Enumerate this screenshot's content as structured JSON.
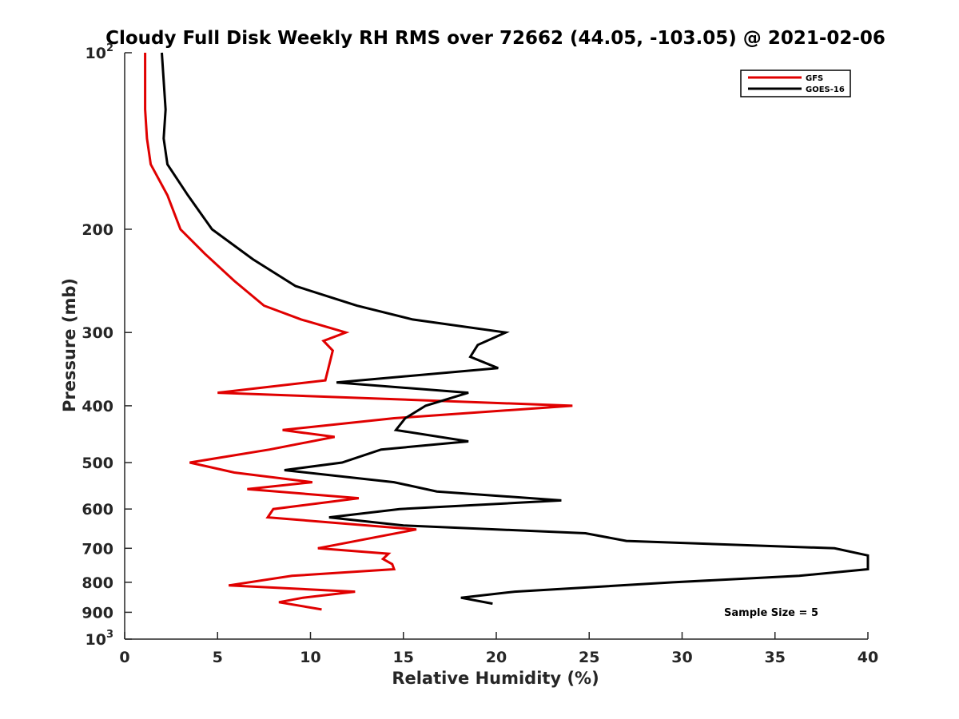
{
  "chart_data": {
    "type": "line",
    "title": "Cloudy Full Disk Weekly RH RMS over 72662 (44.05, -103.05) @ 2021-02-06",
    "xlabel": "Relative Humidity (%)",
    "ylabel": "Pressure (mb)",
    "xlim": [
      0,
      40
    ],
    "ylim": [
      100,
      1000
    ],
    "y_scale": "log",
    "y_reversed": true,
    "grid": false,
    "legend_position": "top-right",
    "x_ticks": [
      "0",
      "5",
      "10",
      "15",
      "20",
      "25",
      "30",
      "35",
      "40"
    ],
    "y_ticks": [
      {
        "value": 100,
        "base": "10",
        "exp": "2"
      },
      {
        "value": 200,
        "label": "200"
      },
      {
        "value": 300,
        "label": "300"
      },
      {
        "value": 400,
        "label": "400"
      },
      {
        "value": 500,
        "label": "500"
      },
      {
        "value": 600,
        "label": "600"
      },
      {
        "value": 700,
        "label": "700"
      },
      {
        "value": 800,
        "label": "800"
      },
      {
        "value": 900,
        "label": "900"
      },
      {
        "value": 1000,
        "base": "10",
        "exp": "3"
      }
    ],
    "series": [
      {
        "name": "GFS",
        "color": "#e00000",
        "points": [
          [
            1.1,
            100
          ],
          [
            1.1,
            125
          ],
          [
            1.2,
            140
          ],
          [
            1.4,
            155
          ],
          [
            2.3,
            175
          ],
          [
            3.0,
            200
          ],
          [
            4.3,
            220
          ],
          [
            5.9,
            245
          ],
          [
            7.5,
            270
          ],
          [
            9.5,
            285
          ],
          [
            11.9,
            300
          ],
          [
            10.7,
            310
          ],
          [
            11.2,
            322
          ],
          [
            10.8,
            362
          ],
          [
            5.0,
            380
          ],
          [
            24.1,
            400
          ],
          [
            14.5,
            420
          ],
          [
            8.5,
            440
          ],
          [
            11.3,
            452
          ],
          [
            7.8,
            475
          ],
          [
            3.5,
            500
          ],
          [
            5.9,
            520
          ],
          [
            10.1,
            540
          ],
          [
            6.6,
            555
          ],
          [
            12.6,
            575
          ],
          [
            8.0,
            600
          ],
          [
            7.7,
            620
          ],
          [
            15.7,
            650
          ],
          [
            10.4,
            700
          ],
          [
            14.2,
            715
          ],
          [
            13.9,
            730
          ],
          [
            14.4,
            745
          ],
          [
            14.5,
            760
          ],
          [
            9.0,
            780
          ],
          [
            5.6,
            810
          ],
          [
            12.4,
            830
          ],
          [
            9.6,
            850
          ],
          [
            8.3,
            865
          ],
          [
            10.6,
            890
          ]
        ]
      },
      {
        "name": "GOES-16",
        "color": "#000000",
        "points": [
          [
            2.0,
            100
          ],
          [
            2.2,
            125
          ],
          [
            2.1,
            140
          ],
          [
            2.3,
            155
          ],
          [
            3.4,
            175
          ],
          [
            4.7,
            200
          ],
          [
            6.9,
            225
          ],
          [
            9.2,
            250
          ],
          [
            12.5,
            270
          ],
          [
            15.5,
            285
          ],
          [
            20.5,
            300
          ],
          [
            19.0,
            315
          ],
          [
            18.6,
            330
          ],
          [
            20.1,
            345
          ],
          [
            11.4,
            365
          ],
          [
            18.5,
            380
          ],
          [
            16.2,
            400
          ],
          [
            15.1,
            420
          ],
          [
            14.6,
            440
          ],
          [
            18.5,
            460
          ],
          [
            13.8,
            475
          ],
          [
            11.7,
            500
          ],
          [
            8.6,
            515
          ],
          [
            14.5,
            540
          ],
          [
            16.8,
            560
          ],
          [
            23.5,
            580
          ],
          [
            14.8,
            600
          ],
          [
            11.0,
            620
          ],
          [
            15.0,
            640
          ],
          [
            24.8,
            660
          ],
          [
            27.0,
            680
          ],
          [
            38.2,
            700
          ],
          [
            40.0,
            720
          ],
          [
            40.0,
            760
          ],
          [
            36.3,
            780
          ],
          [
            29.5,
            800
          ],
          [
            21.0,
            830
          ],
          [
            18.1,
            850
          ],
          [
            19.8,
            870
          ]
        ]
      }
    ],
    "annotation": "Sample Size = 5"
  }
}
